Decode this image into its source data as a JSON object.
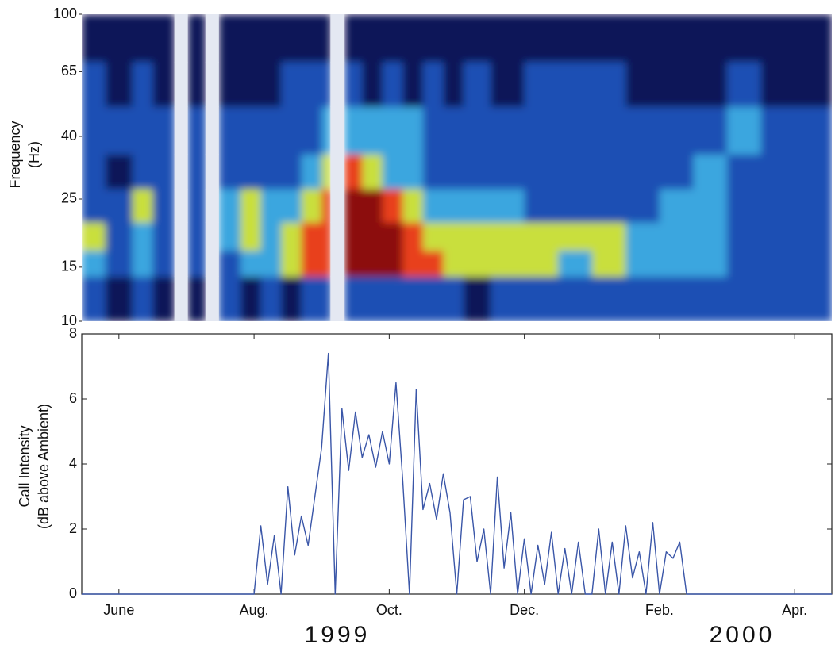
{
  "chart_data": [
    {
      "type": "heatmap",
      "ylabel": [
        "Frequency",
        "(Hz)"
      ],
      "log_y": true,
      "xlim": [
        -0.55,
        10.55
      ],
      "ylim": [
        10,
        100
      ],
      "yticks": [
        10,
        15,
        25,
        40,
        65,
        100
      ],
      "colormap": [
        "#0b1358",
        "#1d4fb4",
        "#3ba6df",
        "#c9df3e",
        "#e8401c",
        "#8c0b0b"
      ],
      "x_edges": [
        -0.55,
        -0.2,
        0.2,
        0.5,
        0.82,
        1.02,
        1.28,
        1.48,
        1.8,
        2.1,
        2.4,
        2.7,
        3.0,
        3.13,
        3.34,
        3.6,
        3.9,
        4.2,
        4.5,
        4.8,
        5.1,
        5.5,
        6.0,
        6.5,
        7.0,
        7.5,
        8.0,
        8.5,
        9.0,
        9.5,
        10.0,
        10.55
      ],
      "y_edges": [
        10,
        14,
        17,
        21,
        27,
        35,
        50,
        70,
        100
      ],
      "z": [
        [
          1,
          0,
          1,
          0,
          null,
          0,
          null,
          1,
          0,
          1,
          0,
          1,
          1,
          null,
          1,
          1,
          1,
          1,
          1,
          1,
          0,
          1,
          1,
          1,
          1,
          1,
          1,
          1,
          1,
          1,
          1
        ],
        [
          2,
          1,
          2,
          1,
          null,
          1,
          null,
          1,
          2,
          2,
          3,
          4,
          4,
          null,
          5,
          5,
          5,
          4,
          4,
          3,
          3,
          3,
          3,
          2,
          3,
          2,
          2,
          2,
          1,
          1,
          1
        ],
        [
          3,
          1,
          2,
          1,
          null,
          1,
          null,
          2,
          3,
          2,
          3,
          4,
          4,
          null,
          5,
          5,
          5,
          4,
          3,
          3,
          3,
          3,
          3,
          3,
          3,
          2,
          2,
          2,
          1,
          1,
          1
        ],
        [
          1,
          1,
          3,
          1,
          null,
          1,
          null,
          2,
          3,
          2,
          2,
          3,
          4,
          null,
          5,
          5,
          4,
          3,
          2,
          2,
          2,
          2,
          1,
          1,
          1,
          1,
          2,
          2,
          1,
          1,
          1
        ],
        [
          1,
          0,
          1,
          1,
          null,
          1,
          null,
          1,
          1,
          1,
          1,
          2,
          3,
          null,
          4,
          3,
          2,
          2,
          1,
          1,
          1,
          1,
          1,
          1,
          1,
          1,
          1,
          2,
          1,
          1,
          1
        ],
        [
          1,
          1,
          1,
          1,
          null,
          1,
          null,
          1,
          1,
          1,
          1,
          1,
          2,
          null,
          2,
          2,
          2,
          2,
          1,
          1,
          1,
          1,
          1,
          1,
          1,
          1,
          1,
          1,
          2,
          1,
          1
        ],
        [
          1,
          0,
          1,
          0,
          null,
          0,
          null,
          0,
          0,
          0,
          1,
          1,
          1,
          null,
          1,
          0,
          1,
          0,
          1,
          0,
          1,
          0,
          1,
          1,
          1,
          0,
          0,
          0,
          1,
          0,
          0
        ],
        [
          0,
          0,
          0,
          0,
          null,
          0,
          null,
          0,
          0,
          0,
          0,
          0,
          0,
          null,
          0,
          0,
          0,
          0,
          0,
          0,
          0,
          0,
          0,
          0,
          0,
          0,
          0,
          0,
          0,
          0,
          0
        ]
      ]
    },
    {
      "type": "line",
      "ylabel": [
        "Call Intensity",
        "(dB above Ambient)"
      ],
      "color": "#3a56a8",
      "xlim": [
        -0.55,
        10.55
      ],
      "ylim": [
        0,
        8
      ],
      "yticks": [
        0,
        2,
        4,
        6,
        8
      ],
      "xticks": [
        {
          "value": 0,
          "label": "June"
        },
        {
          "value": 2,
          "label": "Aug."
        },
        {
          "value": 4,
          "label": "Oct."
        },
        {
          "value": 6,
          "label": "Dec."
        },
        {
          "value": 8,
          "label": "Feb."
        },
        {
          "value": 10,
          "label": "Apr."
        }
      ],
      "annotations": [
        "1999",
        "2000"
      ],
      "x": [
        -0.55,
        2.0,
        2.1,
        2.2,
        2.3,
        2.4,
        2.5,
        2.6,
        2.7,
        2.8,
        2.9,
        3.0,
        3.1,
        3.2,
        3.3,
        3.4,
        3.5,
        3.6,
        3.7,
        3.8,
        3.9,
        4.0,
        4.1,
        4.2,
        4.3,
        4.4,
        4.5,
        4.6,
        4.7,
        4.8,
        4.9,
        5.0,
        5.1,
        5.2,
        5.3,
        5.4,
        5.5,
        5.6,
        5.7,
        5.8,
        5.9,
        6.0,
        6.1,
        6.2,
        6.3,
        6.4,
        6.5,
        6.6,
        6.7,
        6.8,
        6.9,
        7.0,
        7.1,
        7.2,
        7.3,
        7.4,
        7.5,
        7.6,
        7.7,
        7.8,
        7.9,
        8.0,
        8.1,
        8.2,
        8.3,
        8.4,
        10.55
      ],
      "values": [
        0,
        0,
        2.1,
        0.3,
        1.8,
        0,
        3.3,
        1.2,
        2.4,
        1.5,
        3.0,
        4.5,
        7.4,
        0,
        5.7,
        3.8,
        5.6,
        4.2,
        4.9,
        3.9,
        5.0,
        4.0,
        6.5,
        3.5,
        0,
        6.3,
        2.6,
        3.4,
        2.3,
        3.7,
        2.5,
        0,
        2.9,
        3.0,
        1.0,
        2.0,
        0,
        3.6,
        0.8,
        2.5,
        0,
        1.7,
        0,
        1.5,
        0.3,
        1.9,
        0,
        1.4,
        0,
        1.6,
        0,
        0,
        2.0,
        0,
        1.6,
        0,
        2.1,
        0.5,
        1.3,
        0,
        2.2,
        0,
        1.3,
        1.1,
        1.6,
        0,
        0
      ]
    }
  ]
}
